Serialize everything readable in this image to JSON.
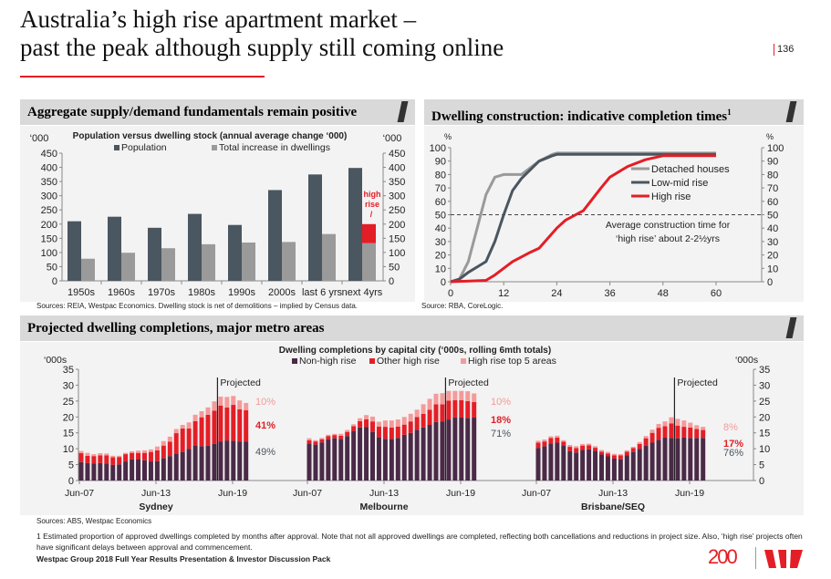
{
  "slide": {
    "title_line1": "Australia’s high rise apartment market –",
    "title_line2": "past the peak although supply still coming online",
    "page_number": "136",
    "footer": "Westpac Group 2018 Full Year Results Presentation & Investor Discussion Pack",
    "logo_text": "200",
    "footnote": "1  Estimated proportion of approved dwellings completed by months after approval. Note that not all approved dwellings are completed, reflecting both cancellations and reductions in project size. Also, ‘high rise’ projects often have significant delays between approval and commencement."
  },
  "panels": {
    "left_header": "Aggregate supply/demand fundamentals remain positive",
    "left_source": "Sources: REIA, Westpac Economics. Dwelling stock is net of demolitions – implied by Census data.",
    "right_header": "Dwelling construction: indicative completion times",
    "right_header_sup": "1",
    "right_source": "Source: RBA, CoreLogic.",
    "bottom_header": "Projected dwelling completions, major metro areas",
    "bottom_source": "Sources: ABS, Westpac Economics"
  },
  "colors": {
    "accent": "#e41e26",
    "dark": "#4a5660",
    "grey": "#9a9a9a",
    "purple": "#4a2a47",
    "light_red": "#f59a9a"
  },
  "chart_data": [
    {
      "type": "bar",
      "title": "Population versus dwelling stock (annual average change ‘000)",
      "ylabel_left": "‘000",
      "ylabel_right": "‘000",
      "ylim": [
        0,
        450
      ],
      "yticks": [
        0,
        50,
        100,
        150,
        200,
        250,
        300,
        350,
        400,
        450
      ],
      "categories": [
        "1950s",
        "1960s",
        "1970s",
        "1980s",
        "1990s",
        "2000s",
        "last 6 yrs",
        "next 4yrs"
      ],
      "series": [
        {
          "name": "Population",
          "values": [
            210,
            226,
            187,
            236,
            197,
            320,
            375,
            398
          ]
        },
        {
          "name": "Total increase in dwellings",
          "values": [
            78,
            99,
            115,
            129,
            135,
            137,
            165,
            133
          ]
        }
      ],
      "high_rise_extra": {
        "category": "next 4yrs",
        "from": 133,
        "to": 200,
        "annotation": "high rise",
        "annotation2": "/"
      },
      "legend": "top"
    },
    {
      "type": "line",
      "ylabel_left": "%",
      "ylabel_right": "%",
      "xlim": [
        0,
        70
      ],
      "ylim": [
        0,
        100
      ],
      "xticks": [
        0,
        12,
        24,
        36,
        48,
        60
      ],
      "yticks": [
        0,
        10,
        20,
        30,
        40,
        50,
        60,
        70,
        80,
        90,
        100
      ],
      "reference_line": {
        "y": 50,
        "style": "dashed"
      },
      "annotation_line1": "Average construction time for",
      "annotation_line2": "‘high rise’ about 2-2½yrs",
      "legend": "right",
      "series": [
        {
          "name": "Detached houses",
          "color": "#9a9a9a",
          "points": [
            [
              0,
              0
            ],
            [
              2,
              2
            ],
            [
              4,
              15
            ],
            [
              6,
              40
            ],
            [
              8,
              65
            ],
            [
              10,
              78
            ],
            [
              12,
              80
            ],
            [
              16,
              80
            ],
            [
              20,
              90
            ],
            [
              23,
              95
            ],
            [
              24,
              96
            ],
            [
              60,
              96
            ]
          ]
        },
        {
          "name": "Low-mid rise",
          "color": "#4a5660",
          "points": [
            [
              0,
              0
            ],
            [
              2,
              2
            ],
            [
              4,
              7
            ],
            [
              8,
              15
            ],
            [
              10,
              30
            ],
            [
              12,
              50
            ],
            [
              14,
              68
            ],
            [
              16,
              77
            ],
            [
              20,
              90
            ],
            [
              23,
              94
            ],
            [
              24,
              95
            ],
            [
              60,
              95
            ]
          ]
        },
        {
          "name": "High rise",
          "color": "#e41e26",
          "points": [
            [
              0,
              0
            ],
            [
              8,
              1
            ],
            [
              10,
              5
            ],
            [
              14,
              15
            ],
            [
              18,
              22
            ],
            [
              20,
              25
            ],
            [
              24,
              40
            ],
            [
              26,
              46
            ],
            [
              30,
              53
            ],
            [
              34,
              70
            ],
            [
              36,
              78
            ],
            [
              40,
              86
            ],
            [
              44,
              91
            ],
            [
              48,
              94
            ],
            [
              60,
              94
            ]
          ]
        }
      ]
    },
    {
      "type": "bar",
      "stacked": true,
      "title": "Dwelling completions by capital city (‘000s, rolling 6mth totals)",
      "ylabel_left": "‘000s",
      "ylabel_right": "‘000s",
      "ylim": [
        0,
        35
      ],
      "yticks": [
        0,
        5,
        10,
        15,
        20,
        25,
        30,
        35
      ],
      "xticks": [
        "Jun-07",
        "Jun-13",
        "Jun-19"
      ],
      "projected_label": "Projected",
      "legend": "top",
      "series_names": [
        "Non-high rise",
        "Other high rise",
        "High rise top 5 areas"
      ],
      "cities": [
        {
          "name": "Sydney",
          "shares": [
            "10%",
            "41%",
            "49%"
          ],
          "non_high_rise": [
            5.8,
            5.5,
            5.3,
            5.5,
            5.4,
            4.9,
            5.1,
            6.0,
            6.7,
            6.6,
            6.4,
            6.0,
            6.1,
            7.0,
            7.7,
            8.5,
            9.0,
            10.0,
            11.1,
            10.8,
            11.0,
            11.5,
            12.3,
            12.6,
            12.5,
            12.3,
            12.3
          ],
          "other_high_rise": [
            2.8,
            2.3,
            2.4,
            2.4,
            2.5,
            2.4,
            2.3,
            2.3,
            2.0,
            2.1,
            2.3,
            3.0,
            3.4,
            4.0,
            4.5,
            6.4,
            7.4,
            6.4,
            7.6,
            9.1,
            9.7,
            10.5,
            11.3,
            10.4,
            11.3,
            10.1,
            9.8
          ],
          "high_rise_top5": [
            0.7,
            0.9,
            0.6,
            0.7,
            0.6,
            0.5,
            0.4,
            0.4,
            0.5,
            0.7,
            0.8,
            0.8,
            1.2,
            1.4,
            1.6,
            1.3,
            1.1,
            1.9,
            2.0,
            1.9,
            2.3,
            2.9,
            2.8,
            3.3,
            2.8,
            2.8,
            2.3
          ]
        },
        {
          "name": "Melbourne",
          "shares": [
            "10%",
            "18%",
            "71%"
          ],
          "non_high_rise": [
            11.7,
            11.3,
            12.0,
            13.0,
            13.3,
            13.1,
            14.0,
            15.6,
            16.7,
            16.8,
            15.3,
            13.6,
            13.1,
            13.1,
            13.4,
            14.4,
            15.0,
            16.0,
            16.7,
            17.5,
            18.4,
            18.5,
            19.2,
            19.9,
            19.8,
            19.7,
            19.8
          ],
          "other_high_rise": [
            1.0,
            1.0,
            1.0,
            1.0,
            1.0,
            1.0,
            1.3,
            1.5,
            2.0,
            2.5,
            3.3,
            3.4,
            3.8,
            3.6,
            3.6,
            3.2,
            3.6,
            4.0,
            4.3,
            4.8,
            5.6,
            5.5,
            5.9,
            5.4,
            5.5,
            5.3,
            4.9
          ],
          "high_rise_top5": [
            0.6,
            0.4,
            0.4,
            0.4,
            0.4,
            0.6,
            0.6,
            0.6,
            0.9,
            1.3,
            1.5,
            1.5,
            2.0,
            2.2,
            2.2,
            2.4,
            2.4,
            2.3,
            3.0,
            3.4,
            3.3,
            3.5,
            3.1,
            2.9,
            2.9,
            3.1,
            2.7
          ]
        },
        {
          "name": "Brisbane/SEQ",
          "shares": [
            "8%",
            "17%",
            "76%"
          ],
          "non_high_rise": [
            10.2,
            10.8,
            11.6,
            11.9,
            10.9,
            9.2,
            8.8,
            9.6,
            9.8,
            9.3,
            8.2,
            7.6,
            6.9,
            6.7,
            7.9,
            9.0,
            10.0,
            11.0,
            11.9,
            12.8,
            13.5,
            13.4,
            13.3,
            13.5,
            13.4,
            13.4,
            13.4
          ],
          "other_high_rise": [
            1.7,
            1.5,
            1.8,
            1.6,
            1.3,
            1.4,
            1.4,
            1.4,
            1.3,
            1.0,
            0.9,
            0.9,
            1.0,
            1.2,
            1.2,
            1.2,
            1.5,
            2.3,
            3.1,
            3.8,
            3.6,
            4.6,
            4.0,
            3.4,
            3.3,
            2.8,
            2.5
          ],
          "high_rise_top5": [
            0.6,
            0.6,
            0.5,
            0.6,
            0.5,
            0.6,
            0.6,
            0.5,
            0.5,
            0.5,
            0.5,
            0.5,
            0.5,
            0.4,
            0.4,
            0.4,
            0.6,
            0.7,
            1.0,
            1.2,
            1.5,
            1.9,
            2.1,
            2.0,
            1.5,
            1.2,
            1.0
          ]
        }
      ]
    }
  ]
}
